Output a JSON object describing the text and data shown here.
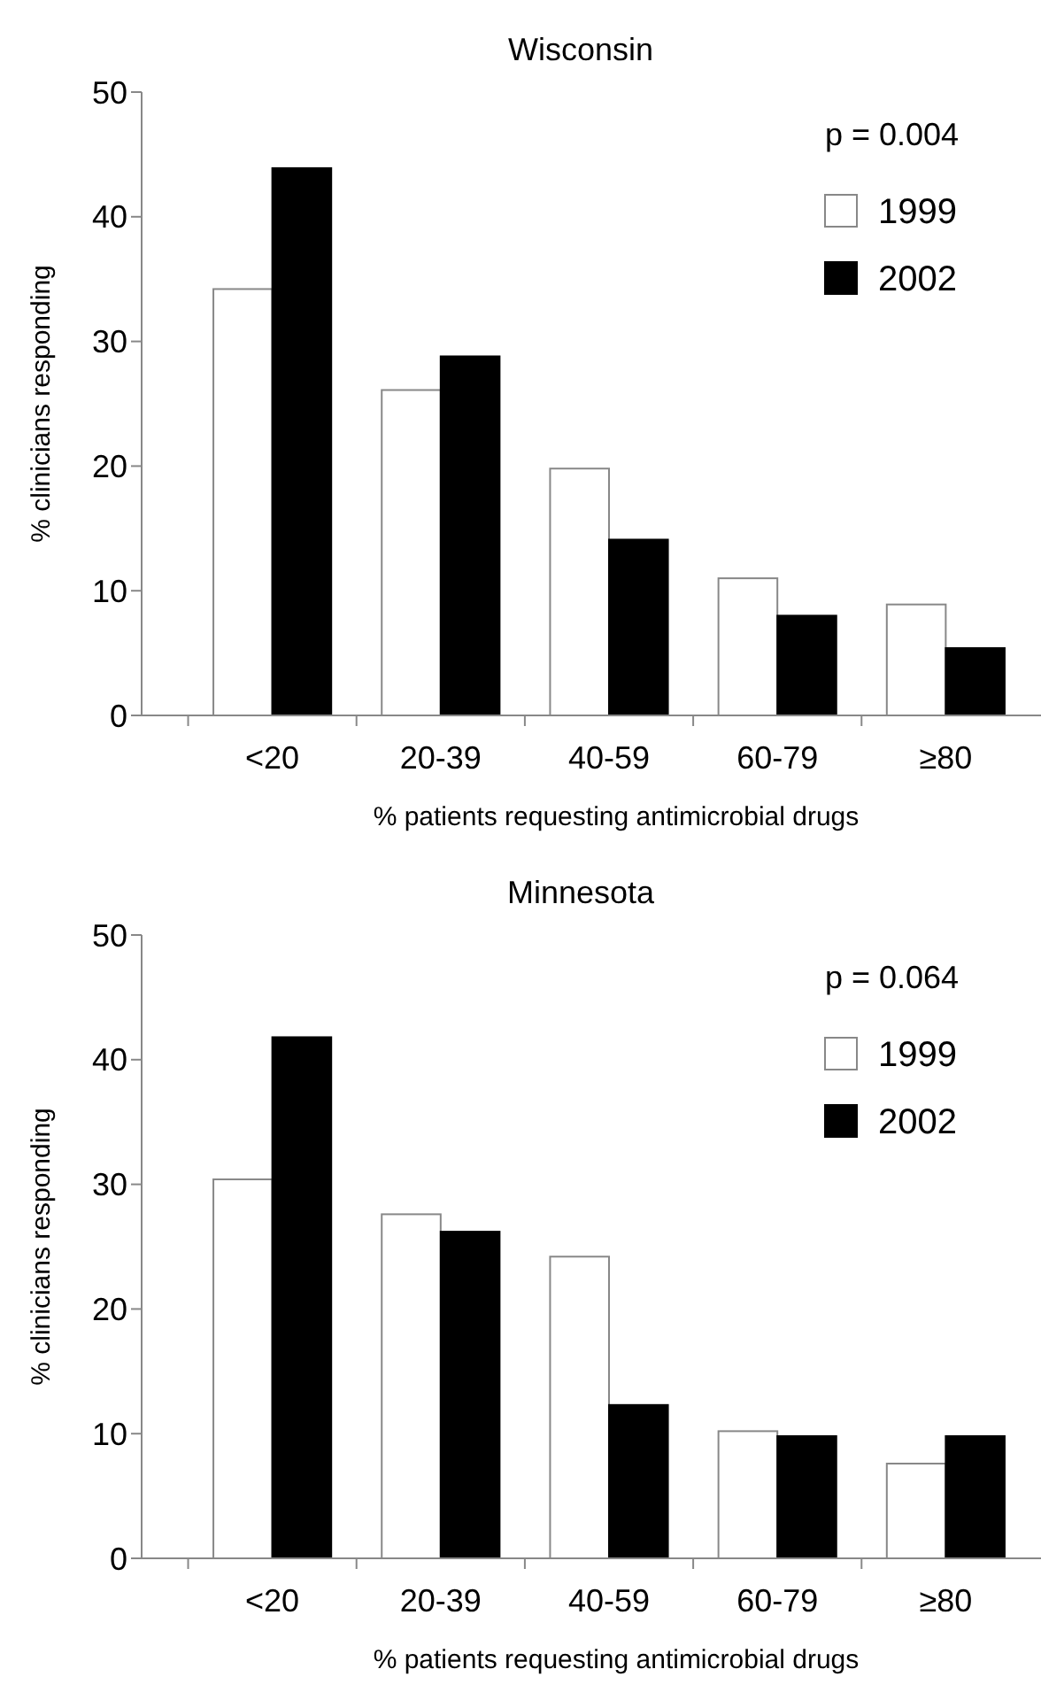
{
  "chart_data": [
    {
      "type": "bar",
      "title": "Wisconsin",
      "xlabel": "% patients requesting antimicrobial drugs",
      "ylabel": "% clinicians responding",
      "categories": [
        "<20",
        "20-39",
        "40-59",
        "60-79",
        "≥80"
      ],
      "series": [
        {
          "name": "1999",
          "color": "#ffffff",
          "values": [
            34.2,
            26.1,
            19.8,
            11.0,
            8.9
          ]
        },
        {
          "name": "2002",
          "color": "#000000",
          "values": [
            43.9,
            28.8,
            14.1,
            8.0,
            5.4
          ]
        }
      ],
      "ylim": [
        0,
        50
      ],
      "yticks": [
        0,
        10,
        20,
        30,
        40,
        50
      ],
      "legend": "top right",
      "annotations": [
        "p = 0.004"
      ]
    },
    {
      "type": "bar",
      "title": "Minnesota",
      "xlabel": "% patients requesting antimicrobial drugs",
      "ylabel": "% clinicians responding",
      "categories": [
        "<20",
        "20-39",
        "40-59",
        "60-79",
        "≥80"
      ],
      "series": [
        {
          "name": "1999",
          "color": "#ffffff",
          "values": [
            30.4,
            27.6,
            24.2,
            10.2,
            7.6
          ]
        },
        {
          "name": "2002",
          "color": "#000000",
          "values": [
            41.8,
            26.2,
            12.3,
            9.8,
            9.8
          ]
        }
      ],
      "ylim": [
        0,
        50
      ],
      "yticks": [
        0,
        10,
        20,
        30,
        40,
        50
      ],
      "legend": "top right",
      "annotations": [
        "p = 0.064"
      ]
    }
  ]
}
